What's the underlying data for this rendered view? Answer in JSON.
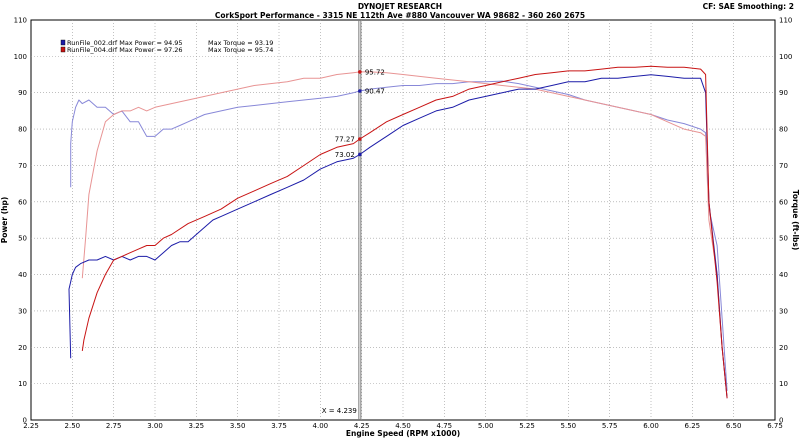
{
  "chart_data": {
    "type": "line",
    "title": "DYNOJET RESEARCH",
    "subtitle": "CorkSport Performance - 3315 NE 112th Ave #880 Vancouver WA 98682 - 360 260 2675",
    "settings": "CF: SAE  Smoothing: 2",
    "xlabel": "Engine Speed (RPM x1000)",
    "ylabel_left": "Power (hp)",
    "ylabel_right": "Torque (ft-lbs)",
    "xlim": [
      2.25,
      6.75
    ],
    "ylim": [
      0,
      110
    ],
    "x_ticks": [
      "2.25",
      "2.50",
      "2.75",
      "3.00",
      "3.25",
      "3.50",
      "3.75",
      "4.00",
      "4.25",
      "4.50",
      "4.75",
      "5.00",
      "5.25",
      "5.50",
      "5.75",
      "6.00",
      "6.25",
      "6.50",
      "6.75"
    ],
    "y_ticks": [
      "0",
      "10",
      "20",
      "30",
      "40",
      "50",
      "60",
      "70",
      "80",
      "90",
      "100",
      "110"
    ],
    "grid": true,
    "legend_position": "top-left",
    "legend": [
      {
        "label": "RunFile_002.drf Max Power = 94.95",
        "torque_label": "Max Torque = 93.19",
        "color": "#1c1ca8"
      },
      {
        "label": "RunFile_004.drf Max Power = 97.26",
        "torque_label": "Max Torque = 95.74",
        "color": "#c81414"
      }
    ],
    "cursor": {
      "x": 4.239,
      "label": "X = 4.239"
    },
    "annotations": [
      {
        "text": "95.72",
        "x": 4.239,
        "y": 95.72,
        "color": "#c81414",
        "side": "right"
      },
      {
        "text": "90.47",
        "x": 4.239,
        "y": 90.47,
        "color": "#1c1ca8",
        "side": "right"
      },
      {
        "text": "77.27",
        "x": 4.239,
        "y": 77.27,
        "color": "#c81414",
        "side": "left"
      },
      {
        "text": "73.02",
        "x": 4.239,
        "y": 73.02,
        "color": "#1c1ca8",
        "side": "left"
      }
    ],
    "series": [
      {
        "name": "RunFile_002.drf Power",
        "color": "#1c1ca8",
        "dim": false,
        "x": [
          2.49,
          2.48,
          2.49,
          2.5,
          2.52,
          2.55,
          2.6,
          2.65,
          2.7,
          2.75,
          2.8,
          2.85,
          2.9,
          2.95,
          3.0,
          3.05,
          3.1,
          3.15,
          3.2,
          3.25,
          3.3,
          3.35,
          3.4,
          3.5,
          3.6,
          3.7,
          3.8,
          3.9,
          4.0,
          4.1,
          4.2,
          4.239,
          4.3,
          4.4,
          4.5,
          4.6,
          4.7,
          4.8,
          4.9,
          5.0,
          5.1,
          5.2,
          5.3,
          5.4,
          5.5,
          5.6,
          5.7,
          5.8,
          5.9,
          6.0,
          6.1,
          6.2,
          6.3,
          6.33,
          6.35,
          6.4,
          6.43,
          6.46
        ],
        "y": [
          17,
          36,
          38,
          40,
          42,
          43,
          44,
          44,
          45,
          44,
          45,
          44,
          45,
          45,
          44,
          46,
          48,
          49,
          49,
          51,
          53,
          55,
          56,
          58,
          60,
          62,
          64,
          66,
          69,
          71,
          72,
          73.02,
          75,
          78,
          81,
          83,
          85,
          86,
          88,
          89,
          90,
          91,
          91,
          92,
          93,
          93,
          94,
          94,
          94.5,
          94.95,
          94.5,
          94,
          94,
          90,
          60,
          40,
          20,
          6
        ]
      },
      {
        "name": "RunFile_004.drf Power",
        "color": "#c81414",
        "dim": false,
        "x": [
          2.56,
          2.57,
          2.6,
          2.65,
          2.7,
          2.75,
          2.8,
          2.85,
          2.9,
          2.95,
          3.0,
          3.05,
          3.1,
          3.2,
          3.3,
          3.4,
          3.5,
          3.6,
          3.7,
          3.8,
          3.9,
          4.0,
          4.1,
          4.2,
          4.239,
          4.3,
          4.4,
          4.5,
          4.6,
          4.7,
          4.8,
          4.9,
          5.0,
          5.1,
          5.2,
          5.3,
          5.4,
          5.5,
          5.6,
          5.7,
          5.8,
          5.9,
          6.0,
          6.1,
          6.2,
          6.3,
          6.33,
          6.35,
          6.4,
          6.43,
          6.46
        ],
        "y": [
          19,
          22,
          28,
          35,
          40,
          44,
          45,
          46,
          47,
          48,
          48,
          50,
          51,
          54,
          56,
          58,
          61,
          63,
          65,
          67,
          70,
          73,
          75,
          76,
          77.27,
          79,
          82,
          84,
          86,
          88,
          89,
          91,
          92,
          93,
          94,
          95,
          95.5,
          96,
          96,
          96.5,
          97,
          97,
          97.26,
          97,
          97,
          96.5,
          95,
          60,
          38,
          20,
          6
        ]
      },
      {
        "name": "RunFile_002.drf Torque",
        "color": "#8888d8",
        "dim": true,
        "x": [
          2.49,
          2.49,
          2.5,
          2.52,
          2.54,
          2.56,
          2.6,
          2.65,
          2.7,
          2.75,
          2.8,
          2.85,
          2.9,
          2.95,
          3.0,
          3.05,
          3.1,
          3.15,
          3.2,
          3.3,
          3.4,
          3.5,
          3.6,
          3.7,
          3.8,
          3.9,
          4.0,
          4.1,
          4.2,
          4.239,
          4.3,
          4.4,
          4.5,
          4.6,
          4.7,
          4.8,
          4.9,
          5.0,
          5.1,
          5.2,
          5.3,
          5.4,
          5.5,
          5.6,
          5.7,
          5.8,
          5.9,
          6.0,
          6.1,
          6.2,
          6.3,
          6.33,
          6.35,
          6.4,
          6.43,
          6.46
        ],
        "y": [
          64,
          76,
          82,
          86,
          88,
          87,
          88,
          86,
          86,
          84,
          85,
          82,
          82,
          78,
          78,
          80,
          80,
          81,
          82,
          84,
          85,
          86,
          86.5,
          87,
          87.5,
          88,
          88.5,
          89,
          90,
          90.47,
          91,
          91.5,
          92,
          92,
          92.5,
          92.5,
          93,
          93,
          93.19,
          92.5,
          91.5,
          90.5,
          89.5,
          88,
          87,
          86,
          85,
          84,
          82.5,
          81.5,
          80,
          79,
          58,
          48,
          28,
          8
        ]
      },
      {
        "name": "RunFile_004.drf Torque",
        "color": "#e89494",
        "dim": true,
        "x": [
          2.56,
          2.58,
          2.6,
          2.65,
          2.7,
          2.75,
          2.8,
          2.85,
          2.9,
          2.95,
          3.0,
          3.1,
          3.2,
          3.3,
          3.4,
          3.5,
          3.6,
          3.7,
          3.8,
          3.9,
          4.0,
          4.1,
          4.2,
          4.239,
          4.3,
          4.4,
          4.5,
          4.6,
          4.7,
          4.8,
          4.9,
          5.0,
          5.1,
          5.2,
          5.3,
          5.4,
          5.5,
          5.6,
          5.7,
          5.8,
          5.9,
          6.0,
          6.1,
          6.2,
          6.3,
          6.33,
          6.35,
          6.4,
          6.43,
          6.46
        ],
        "y": [
          39,
          50,
          62,
          74,
          82,
          84,
          85,
          85,
          86,
          85,
          86,
          87,
          88,
          89,
          90,
          91,
          92,
          92.5,
          93,
          94,
          94,
          95,
          95.5,
          95.72,
          95.74,
          95.5,
          95,
          94.5,
          94,
          93.5,
          93,
          92.5,
          92,
          91.5,
          91,
          90,
          89,
          88,
          87,
          86,
          85,
          84,
          82,
          80,
          79,
          78,
          55,
          40,
          20,
          6
        ]
      }
    ]
  }
}
